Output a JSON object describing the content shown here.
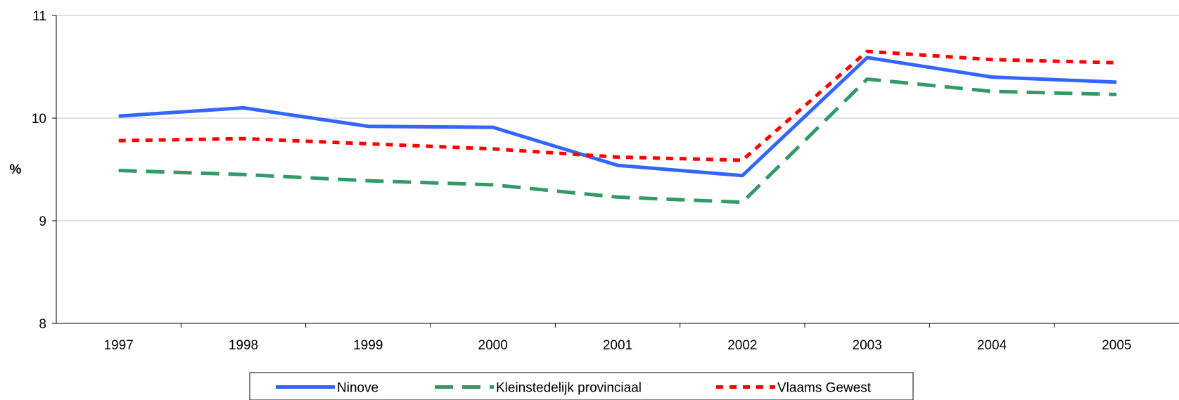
{
  "chart_data": {
    "type": "line",
    "categories": [
      "1997",
      "1998",
      "1999",
      "2000",
      "2001",
      "2002",
      "2003",
      "2004",
      "2005"
    ],
    "series": [
      {
        "name": "Ninove",
        "values": [
          10.02,
          10.1,
          9.92,
          9.91,
          9.54,
          9.44,
          10.59,
          10.4,
          10.35
        ],
        "color": "#3366FF",
        "dash": "solid"
      },
      {
        "name": "Kleinstedelijk provinciaal",
        "values": [
          9.49,
          9.45,
          9.39,
          9.35,
          9.23,
          9.18,
          10.38,
          10.26,
          10.23
        ],
        "color": "#339966",
        "dash": "dashed"
      },
      {
        "name": "Vlaams Gewest",
        "values": [
          9.78,
          9.8,
          9.75,
          9.7,
          9.62,
          9.59,
          10.65,
          10.57,
          10.54
        ],
        "color": "#FF0000",
        "dash": "dotted"
      }
    ],
    "ylabel": "%",
    "xlabel": "",
    "ylim": [
      8,
      11
    ],
    "yticks": [
      "8",
      "9",
      "10",
      "11"
    ],
    "grid": true,
    "legend_position": "bottom"
  }
}
